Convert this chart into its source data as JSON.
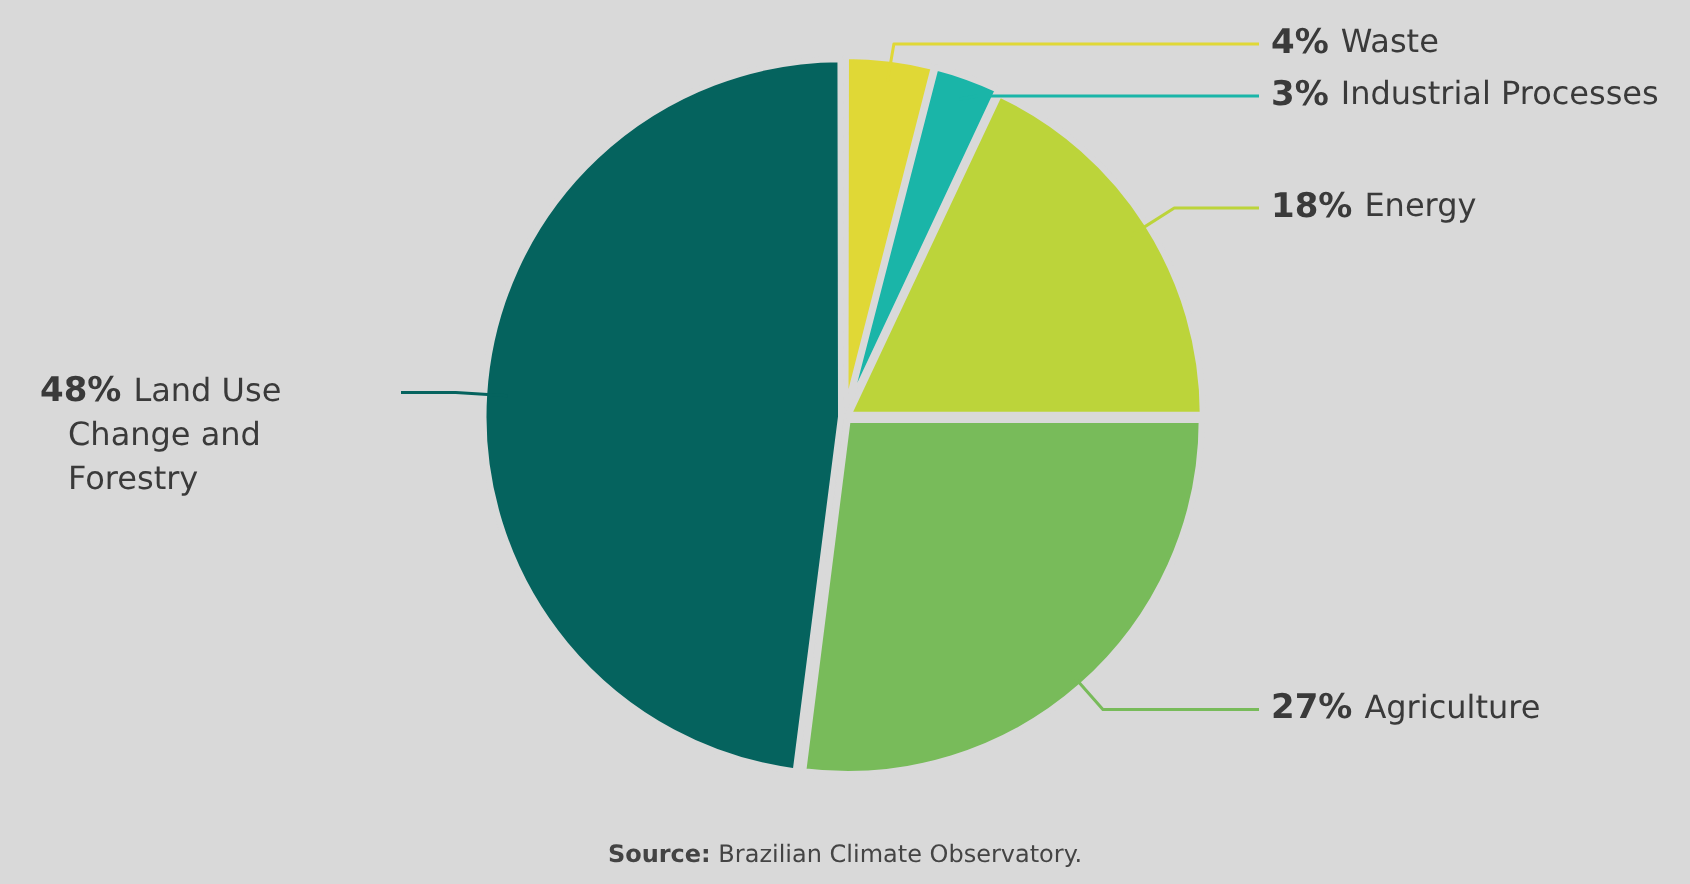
{
  "chart_data": {
    "type": "pie",
    "categories": [
      "Waste",
      "Industrial Processes",
      "Energy",
      "Agriculture",
      "Land Use Change and Forestry"
    ],
    "values": [
      4,
      3,
      18,
      27,
      48
    ],
    "value_labels": [
      "4%",
      "3%",
      "18%",
      "27%",
      "48%"
    ],
    "colors": [
      "#e0d836",
      "#1ab5a8",
      "#bcd43a",
      "#78bb5a",
      "#05635e"
    ],
    "legend": false,
    "annotations": [
      "Source: Brazilian Climate Observatory."
    ]
  }
}
